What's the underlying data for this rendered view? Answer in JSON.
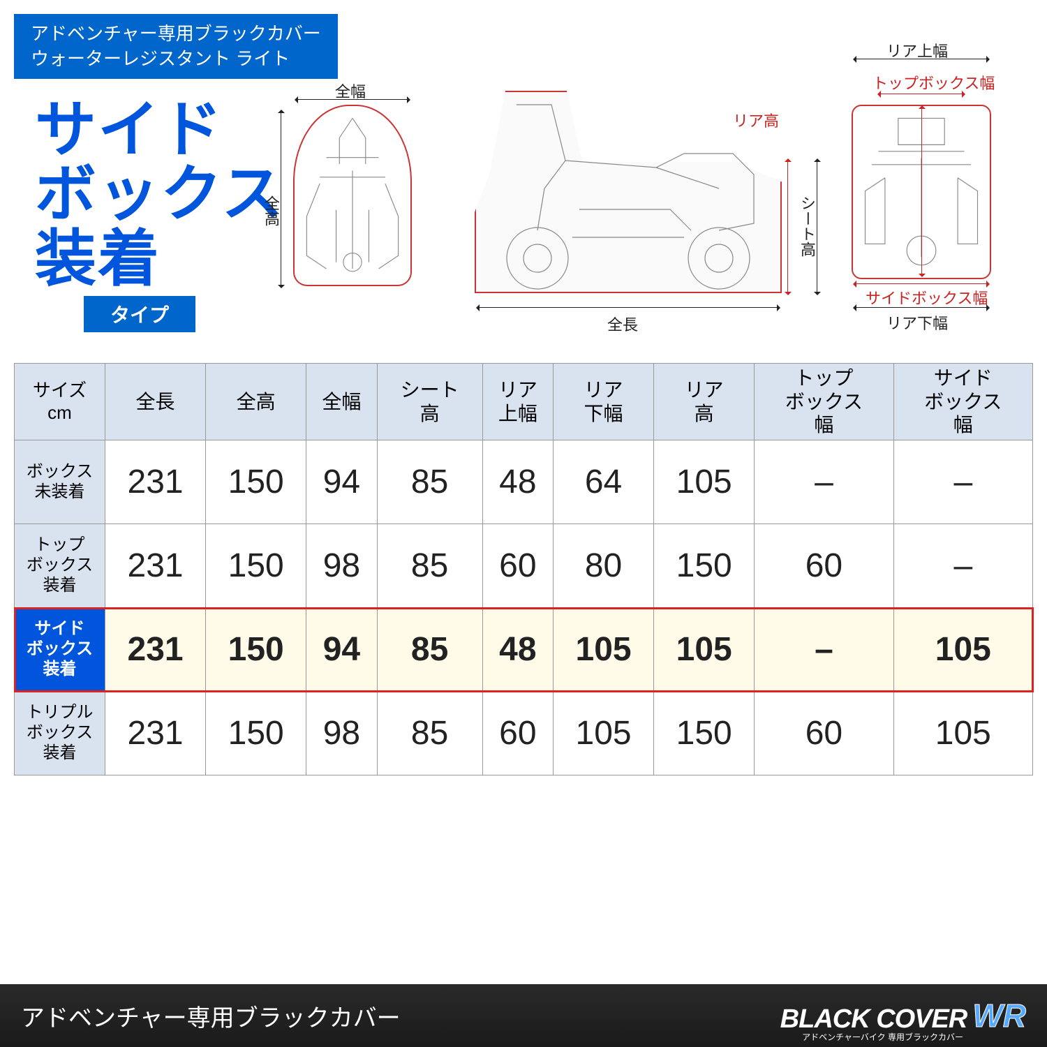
{
  "header": {
    "line1": "アドベンチャー専用ブラックカバー",
    "line2": "ウォーターレジスタント ライト"
  },
  "title": {
    "line1": "サイド",
    "line2": "ボックス",
    "line3": "装着",
    "type_label": "タイプ"
  },
  "diagrams": {
    "front": {
      "top_label": "全幅",
      "left_label": "全高"
    },
    "side": {
      "right_top_label": "リア高",
      "right_label": "シート高",
      "bottom_label": "全長"
    },
    "rear": {
      "top_label": "リア上幅",
      "topbox_label": "トップボックス幅",
      "sidebox_label": "サイドボックス幅",
      "bottom_label": "リア下幅"
    }
  },
  "table": {
    "columns": [
      "サイズ\ncm",
      "全長",
      "全高",
      "全幅",
      "シート\n高",
      "リア\n上幅",
      "リア\n下幅",
      "リア\n高",
      "トップ\nボックス\n幅",
      "サイド\nボックス\n幅"
    ],
    "rows": [
      {
        "label": "ボックス\n未装着",
        "values": [
          "231",
          "150",
          "94",
          "85",
          "48",
          "64",
          "105",
          "–",
          "–"
        ],
        "highlight": false
      },
      {
        "label": "トップ\nボックス\n装着",
        "values": [
          "231",
          "150",
          "98",
          "85",
          "60",
          "80",
          "150",
          "60",
          "–"
        ],
        "highlight": false
      },
      {
        "label": "サイド\nボックス\n装着",
        "values": [
          "231",
          "150",
          "94",
          "85",
          "48",
          "105",
          "105",
          "–",
          "105"
        ],
        "highlight": true
      },
      {
        "label": "トリプル\nボックス\n装着",
        "values": [
          "231",
          "150",
          "98",
          "85",
          "60",
          "105",
          "150",
          "60",
          "105"
        ],
        "highlight": false
      }
    ],
    "colors": {
      "header_bg": "#d9e3f0",
      "rowhead_bg": "#d9e3f0",
      "highlight_bg": "#fffbe8",
      "highlight_head_bg": "#0055dd",
      "highlight_border": "#dd2222",
      "border": "#999999",
      "text": "#222222"
    },
    "cell_fontsize_pt": 36,
    "header_fontsize_pt": 21
  },
  "footer": {
    "title": "アドベンチャー専用ブラックカバー",
    "brand_main": "BLACK COVER",
    "brand_wr": "WR",
    "brand_sub": "アドベンチャーバイク 専用ブラックカバー"
  },
  "colors": {
    "brand_blue": "#0066cc",
    "title_blue": "#0055dd",
    "accent_red": "#cc2222",
    "wr_blue": "#55aaff"
  }
}
